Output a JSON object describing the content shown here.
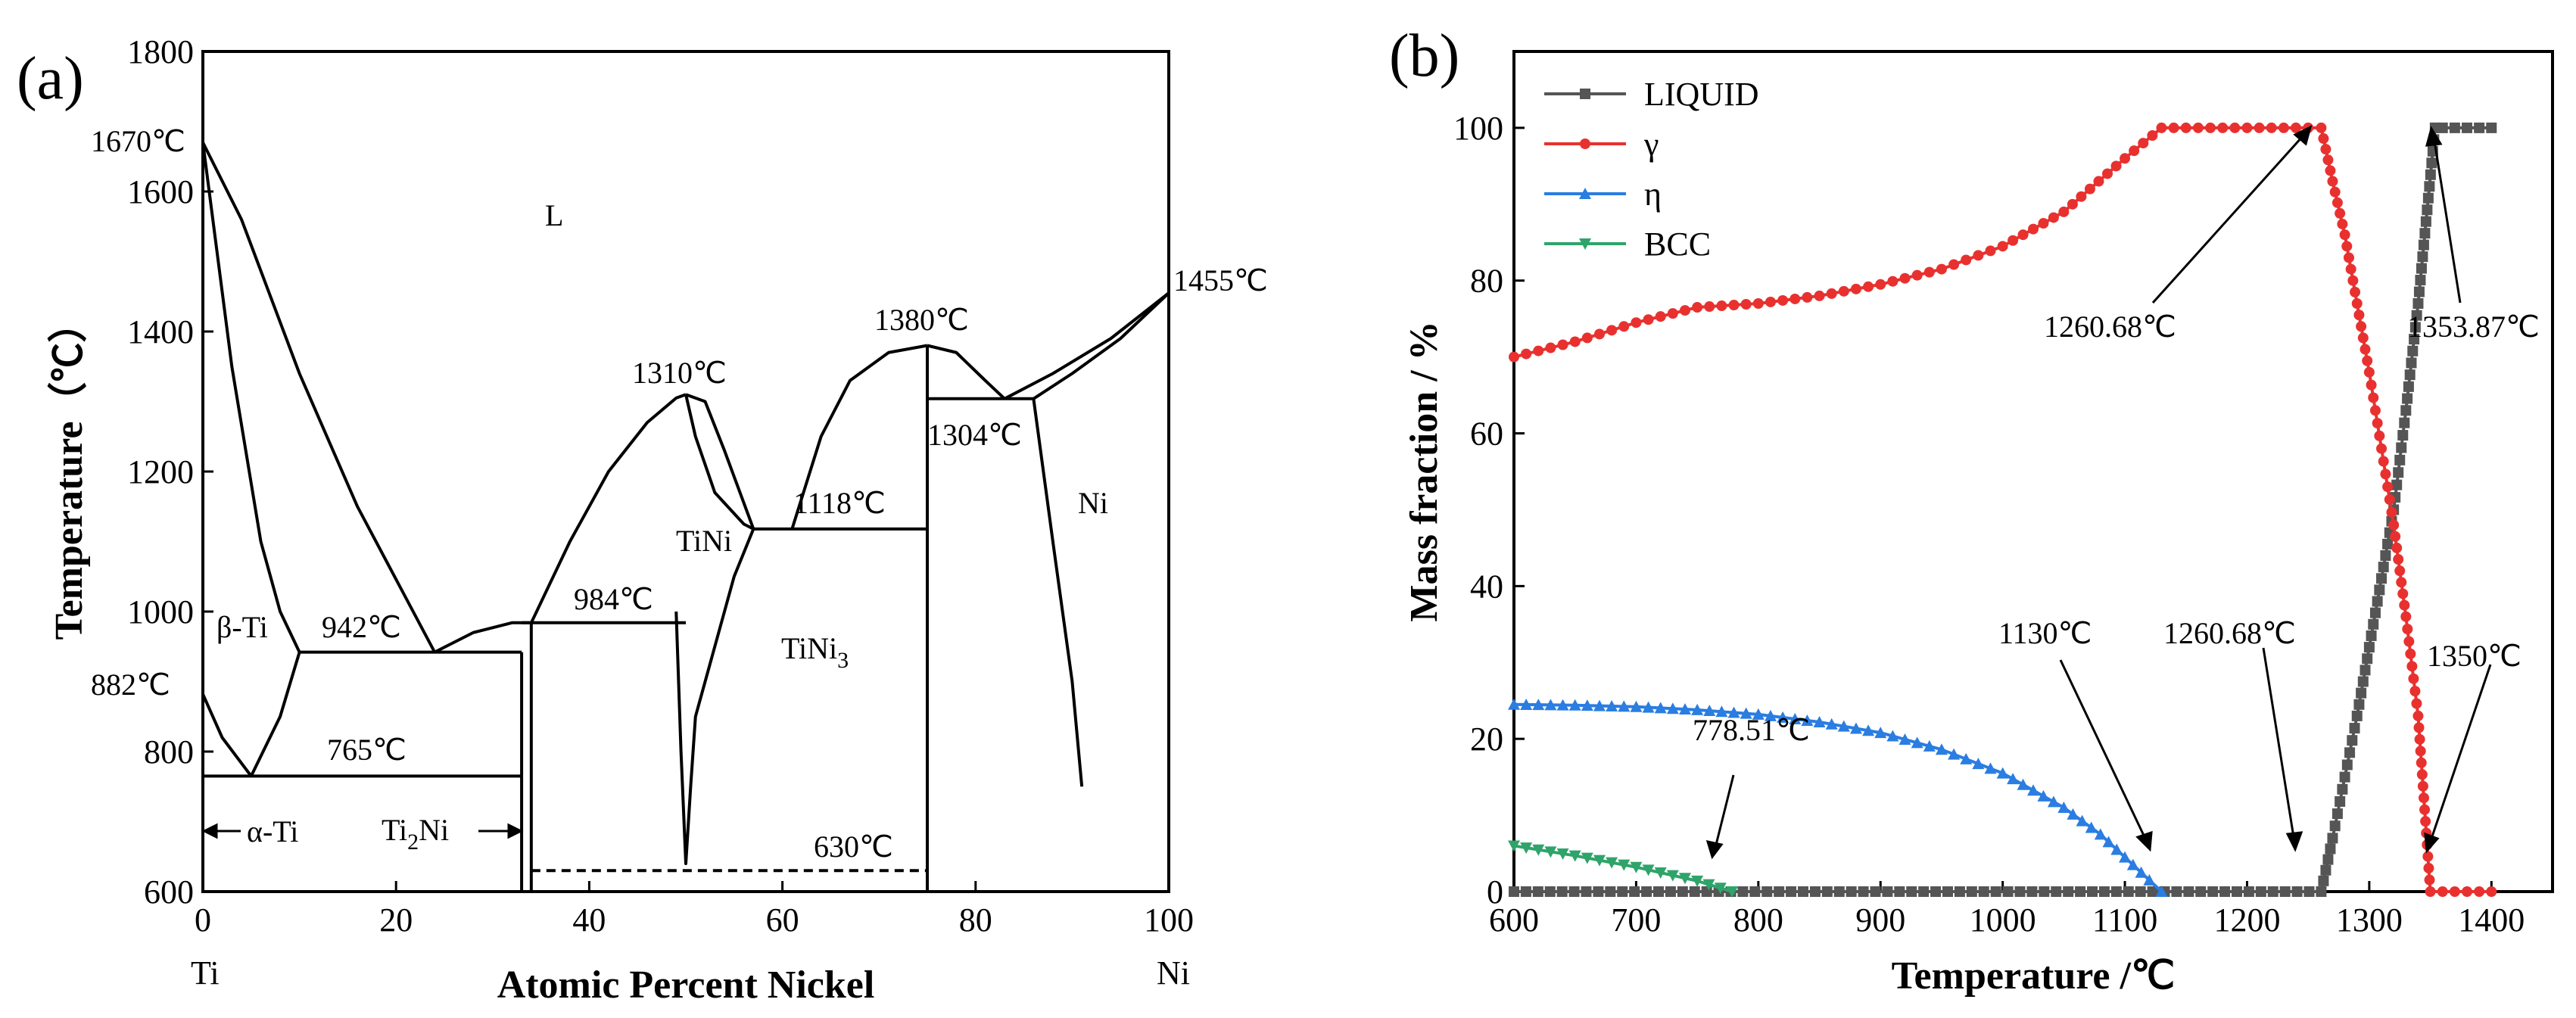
{
  "panel_a": {
    "label": "(a)",
    "xlabel": "Atomic Percent Nickel",
    "ylabel": "Temperature（℃）",
    "x_ticks": [
      "0",
      "20",
      "40",
      "60",
      "80",
      "100"
    ],
    "y_ticks": [
      "600",
      "800",
      "1000",
      "1200",
      "1400",
      "1600",
      "1800"
    ],
    "end_labels": {
      "left": "Ti",
      "right": "Ni"
    },
    "annotations": {
      "t1670": "1670℃",
      "t882": "882℃",
      "t1455": "1455℃",
      "t1310": "1310℃",
      "t1380": "1380℃",
      "t1304": "1304℃",
      "t1118": "1118℃",
      "t984": "984℃",
      "t942": "942℃",
      "t765": "765℃",
      "t630": "630℃"
    },
    "phases": {
      "L": "L",
      "beta": "β-Ti",
      "alpha": "α-Ti",
      "tini": "TiNi",
      "ni": "Ni",
      "ti2ni_base": "Ti",
      "ti2ni_sub": "2",
      "ti2ni_tail": "Ni",
      "tini3_base": "TiNi",
      "tini3_sub": "3"
    }
  },
  "panel_b": {
    "label": "(b)",
    "xlabel": "Temperature /℃",
    "ylabel": "Mass fraction / %",
    "x_ticks": [
      "600",
      "700",
      "800",
      "900",
      "1000",
      "1100",
      "1200",
      "1300",
      "1400"
    ],
    "y_ticks": [
      "0",
      "20",
      "40",
      "60",
      "80",
      "100"
    ],
    "legend": [
      "LIQUID",
      "γ",
      "η",
      "BCC"
    ],
    "annotations": {
      "a1": "778.51℃",
      "a2": "1130℃",
      "a3": "1260.68℃",
      "a4": "1260.68℃",
      "a5": "1353.87℃",
      "a6": "1350℃"
    }
  },
  "colors": {
    "liquid": "#555555",
    "gamma": "#e8312f",
    "eta": "#2a7de1",
    "bcc": "#2fa46a"
  },
  "chart_data": [
    {
      "type": "line",
      "title": "",
      "xlabel": "Atomic Percent Nickel",
      "ylabel": "Temperature（℃）",
      "xlim": [
        0,
        100
      ],
      "ylim": [
        600,
        1800
      ],
      "series": [
        {
          "x": [
            0,
            4,
            10,
            16,
            21,
            24
          ],
          "y": [
            1670,
            1560,
            1340,
            1150,
            1020,
            942
          ]
        },
        {
          "x": [
            0,
            3,
            6,
            8,
            10
          ],
          "y": [
            1670,
            1350,
            1100,
            1000,
            942
          ]
        },
        {
          "x": [
            0,
            2,
            5
          ],
          "y": [
            882,
            820,
            765
          ]
        },
        {
          "x": [
            5,
            8,
            10
          ],
          "y": [
            765,
            850,
            942
          ]
        },
        {
          "x": [
            24,
            28,
            32,
            34
          ],
          "y": [
            942,
            970,
            984,
            984
          ]
        },
        {
          "x": [
            34,
            38,
            42,
            46,
            49,
            50
          ],
          "y": [
            984,
            1100,
            1200,
            1270,
            1305,
            1310
          ]
        },
        {
          "x": [
            50,
            52,
            54,
            57
          ],
          "y": [
            1310,
            1300,
            1230,
            1118
          ]
        },
        {
          "x": [
            50,
            51,
            53,
            56,
            57
          ],
          "y": [
            1310,
            1250,
            1170,
            1125,
            1118
          ]
        },
        {
          "x": [
            61,
            64,
            67,
            71,
            75
          ],
          "y": [
            1118,
            1250,
            1330,
            1370,
            1380
          ]
        },
        {
          "x": [
            75,
            78,
            81,
            83
          ],
          "y": [
            1380,
            1370,
            1330,
            1304
          ]
        },
        {
          "x": [
            83,
            88,
            94,
            100
          ],
          "y": [
            1304,
            1340,
            1390,
            1455
          ]
        },
        {
          "x": [
            86,
            90,
            95,
            100
          ],
          "y": [
            1304,
            1340,
            1390,
            1455
          ]
        },
        {
          "x": [
            49,
            49.5,
            50,
            50.5,
            51,
            53,
            55,
            57
          ],
          "y": [
            1000,
            800,
            640,
            750,
            850,
            950,
            1050,
            1118
          ]
        },
        {
          "x": [
            86,
            88,
            90,
            91
          ],
          "y": [
            1304,
            1100,
            900,
            750
          ]
        }
      ],
      "horizontal_lines": [
        {
          "y": 942,
          "x": [
            10,
            33
          ]
        },
        {
          "y": 765,
          "x": [
            0,
            33
          ]
        },
        {
          "y": 984,
          "x": [
            33,
            50
          ]
        },
        {
          "y": 1118,
          "x": [
            57,
            75
          ]
        },
        {
          "y": 1304,
          "x": [
            75,
            86
          ]
        },
        {
          "y": 630,
          "x": [
            34,
            75
          ],
          "style": "dashed"
        }
      ],
      "vertical_lines": [
        {
          "x": 33,
          "y": [
            600,
            942
          ]
        },
        {
          "x": 34,
          "y": [
            600,
            984
          ]
        },
        {
          "x": 75,
          "y": [
            600,
            1380
          ]
        }
      ]
    },
    {
      "type": "line",
      "title": "",
      "xlabel": "Temperature /℃",
      "ylabel": "Mass fraction / %",
      "xlim": [
        600,
        1450
      ],
      "ylim": [
        0,
        110
      ],
      "legend_position": "top-left",
      "series": [
        {
          "name": "LIQUID",
          "marker": "square",
          "x": [
            600,
            1260.68,
            1270,
            1280,
            1290,
            1300,
            1310,
            1320,
            1330,
            1340,
            1353.87,
            1360,
            1370,
            1380,
            1390,
            1400
          ],
          "y": [
            0,
            0,
            7,
            15,
            23,
            32,
            41,
            50,
            63,
            77,
            100,
            100,
            100,
            100,
            100,
            100
          ]
        },
        {
          "name": "γ",
          "marker": "circle",
          "x": [
            600,
            650,
            700,
            750,
            800,
            850,
            900,
            950,
            1000,
            1050,
            1100,
            1130,
            1150,
            1200,
            1250,
            1260.68,
            1270,
            1280,
            1290,
            1300,
            1310,
            1320,
            1330,
            1340,
            1350,
            1360,
            1380,
            1400
          ],
          "y": [
            70,
            72,
            74.5,
            76.5,
            77,
            78,
            79.5,
            81.5,
            84.5,
            89,
            96,
            100,
            100,
            100,
            100,
            100,
            93,
            86,
            77,
            68,
            58,
            48,
            36,
            23,
            0,
            0,
            0,
            0
          ]
        },
        {
          "name": "η",
          "marker": "triangle-up",
          "x": [
            600,
            650,
            700,
            750,
            800,
            850,
            900,
            950,
            1000,
            1050,
            1080,
            1100,
            1120,
            1130
          ],
          "y": [
            24.5,
            24.4,
            24.2,
            23.8,
            23.2,
            22.2,
            20.8,
            18.6,
            15.5,
            11,
            7.5,
            4.5,
            1.5,
            0
          ]
        },
        {
          "name": "BCC",
          "marker": "triangle-down",
          "x": [
            600,
            650,
            700,
            750,
            778.51
          ],
          "y": [
            6,
            4.7,
            3.2,
            1.4,
            0
          ]
        }
      ]
    }
  ]
}
